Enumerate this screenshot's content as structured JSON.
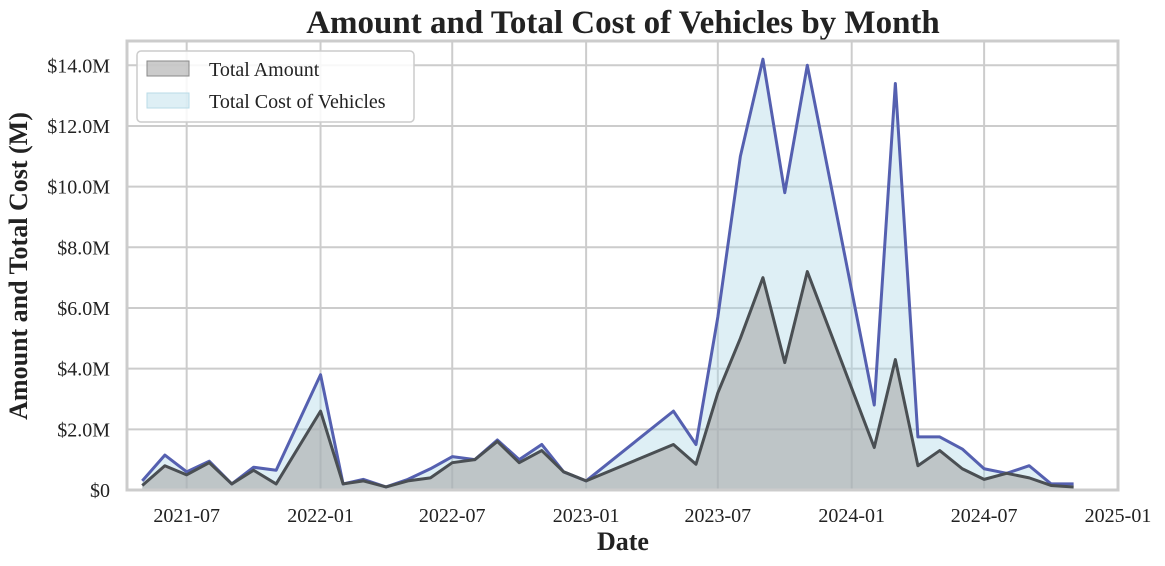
{
  "chart_data": {
    "type": "area",
    "title": "Amount and Total Cost of Vehicles by Month",
    "xlabel": "Date",
    "ylabel": "Amount and Total Cost (M)",
    "xlim": [
      "2021-04-10",
      "2025-01-01"
    ],
    "ylim": [
      0,
      14.8
    ],
    "grid": true,
    "legend_position": "top-left",
    "x_ticks": [
      "2021-07",
      "2022-01",
      "2022-07",
      "2023-01",
      "2023-07",
      "2024-01",
      "2024-07",
      "2025-01"
    ],
    "y_ticks": [
      "$0",
      "$2.0M",
      "$4.0M",
      "$6.0M",
      "$8.0M",
      "$10.0M",
      "$12.0M",
      "$14.0M"
    ],
    "y_tick_values": [
      0,
      2,
      4,
      6,
      8,
      10,
      12,
      14
    ],
    "colors": {
      "amount_fill": "#a9a9a9",
      "amount_line": "#4a4f53",
      "cost_fill": "#add8e6",
      "cost_line": "#5560b0",
      "grid": "#cccccc"
    },
    "series": [
      {
        "name": "Total Amount",
        "x": [
          "2021-05-01",
          "2021-06-01",
          "2021-07-01",
          "2021-08-01",
          "2021-09-01",
          "2021-10-01",
          "2021-11-01",
          "2022-01-01",
          "2022-02-01",
          "2022-03-01",
          "2022-04-01",
          "2022-05-01",
          "2022-06-01",
          "2022-07-01",
          "2022-08-01",
          "2022-09-01",
          "2022-10-01",
          "2022-11-01",
          "2022-12-01",
          "2023-01-01",
          "2023-05-01",
          "2023-06-01",
          "2023-07-01",
          "2023-08-01",
          "2023-09-01",
          "2023-10-01",
          "2023-11-01",
          "2024-02-01",
          "2024-03-01",
          "2024-04-01",
          "2024-05-01",
          "2024-06-01",
          "2024-07-01",
          "2024-08-01",
          "2024-09-01",
          "2024-10-01",
          "2024-11-01"
        ],
        "values": [
          0.15,
          0.8,
          0.5,
          0.9,
          0.2,
          0.65,
          0.2,
          2.6,
          0.2,
          0.3,
          0.1,
          0.3,
          0.4,
          0.9,
          1.0,
          1.6,
          0.9,
          1.3,
          0.6,
          0.3,
          1.5,
          0.85,
          3.2,
          5.0,
          7.0,
          4.2,
          7.2,
          1.4,
          4.3,
          0.8,
          1.3,
          0.7,
          0.35,
          0.55,
          0.4,
          0.15,
          0.1
        ]
      },
      {
        "name": "Total Cost of Vehicles",
        "x": [
          "2021-05-01",
          "2021-06-01",
          "2021-07-01",
          "2021-08-01",
          "2021-09-01",
          "2021-10-01",
          "2021-11-01",
          "2022-01-01",
          "2022-02-01",
          "2022-03-01",
          "2022-04-01",
          "2022-05-01",
          "2022-06-01",
          "2022-07-01",
          "2022-08-01",
          "2022-09-01",
          "2022-10-01",
          "2022-11-01",
          "2022-12-01",
          "2023-01-01",
          "2023-05-01",
          "2023-06-01",
          "2023-07-01",
          "2023-08-01",
          "2023-09-01",
          "2023-10-01",
          "2023-11-01",
          "2024-02-01",
          "2024-03-01",
          "2024-04-01",
          "2024-05-01",
          "2024-06-01",
          "2024-07-01",
          "2024-08-01",
          "2024-09-01",
          "2024-10-01",
          "2024-11-01"
        ],
        "values": [
          0.3,
          1.15,
          0.6,
          0.95,
          0.2,
          0.75,
          0.65,
          3.8,
          0.2,
          0.35,
          0.1,
          0.35,
          0.7,
          1.1,
          1.0,
          1.65,
          1.0,
          1.5,
          0.6,
          0.3,
          2.6,
          1.5,
          5.7,
          11.0,
          14.2,
          9.8,
          14.0,
          2.8,
          13.4,
          1.75,
          1.75,
          1.35,
          0.7,
          0.55,
          0.8,
          0.2,
          0.2
        ]
      }
    ]
  }
}
